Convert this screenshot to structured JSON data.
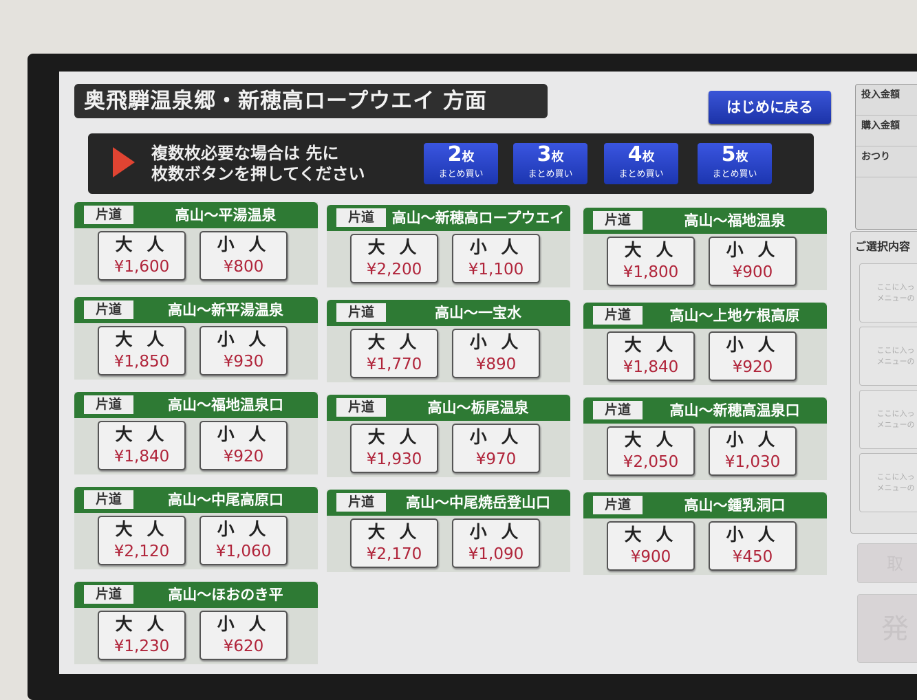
{
  "header": {
    "title": "奥飛騨温泉郷・新穂高ロープウエイ 方面",
    "back_button": "はじめに戻る"
  },
  "notice": {
    "line1": "複数枚必要な場合は 先に",
    "line2": "枚数ボタンを押してください",
    "quantity_buttons": [
      {
        "count": "2",
        "unit": "枚",
        "sub": "まとめ買い"
      },
      {
        "count": "3",
        "unit": "枚",
        "sub": "まとめ買い"
      },
      {
        "count": "4",
        "unit": "枚",
        "sub": "まとめ買い"
      },
      {
        "count": "5",
        "unit": "枚",
        "sub": "まとめ買い"
      }
    ]
  },
  "ticket_type": "片道",
  "adult_label": "大 人",
  "child_label": "小 人",
  "routes": [
    {
      "dest": "高山〜平湯温泉",
      "adult": "¥1,600",
      "child": "¥800"
    },
    {
      "dest": "高山〜新穂高ロープウエイ",
      "adult": "¥2,200",
      "child": "¥1,100"
    },
    {
      "dest": "高山〜福地温泉",
      "adult": "¥1,800",
      "child": "¥900"
    },
    {
      "dest": "高山〜新平湯温泉",
      "adult": "¥1,850",
      "child": "¥930"
    },
    {
      "dest": "高山〜一宝水",
      "adult": "¥1,770",
      "child": "¥890"
    },
    {
      "dest": "高山〜上地ケ根高原",
      "adult": "¥1,840",
      "child": "¥920"
    },
    {
      "dest": "高山〜福地温泉口",
      "adult": "¥1,840",
      "child": "¥920"
    },
    {
      "dest": "高山〜栃尾温泉",
      "adult": "¥1,930",
      "child": "¥970"
    },
    {
      "dest": "高山〜新穂高温泉口",
      "adult": "¥2,050",
      "child": "¥1,030"
    },
    {
      "dest": "高山〜中尾高原口",
      "adult": "¥2,120",
      "child": "¥1,060"
    },
    {
      "dest": "高山〜中尾焼岳登山口",
      "adult": "¥2,170",
      "child": "¥1,090"
    },
    {
      "dest": "高山〜鍾乳洞口",
      "adult": "¥900",
      "child": "¥450"
    },
    {
      "dest": "高山〜ほおのき平",
      "adult": "¥1,230",
      "child": "¥620"
    }
  ],
  "sidebar": {
    "inserted": "投入金額",
    "purchase": "購入金額",
    "change": "おつり",
    "selection_title": "ご選択内容",
    "slots": [
      {
        "l1": "ここに入っ",
        "l2": "メニューの"
      },
      {
        "l1": "ここに入っ",
        "l2": "メニューの"
      },
      {
        "l1": "ここに入っ",
        "l2": "メニューの"
      },
      {
        "l1": "ここに入っ",
        "l2": "メニューの"
      }
    ],
    "cancel_button": "取",
    "issue_button": "発"
  },
  "colors": {
    "route_header": "#2e7a34",
    "button_blue": "#1c36b0",
    "price": "#b0243a",
    "title_bar": "#2f2f2f"
  }
}
